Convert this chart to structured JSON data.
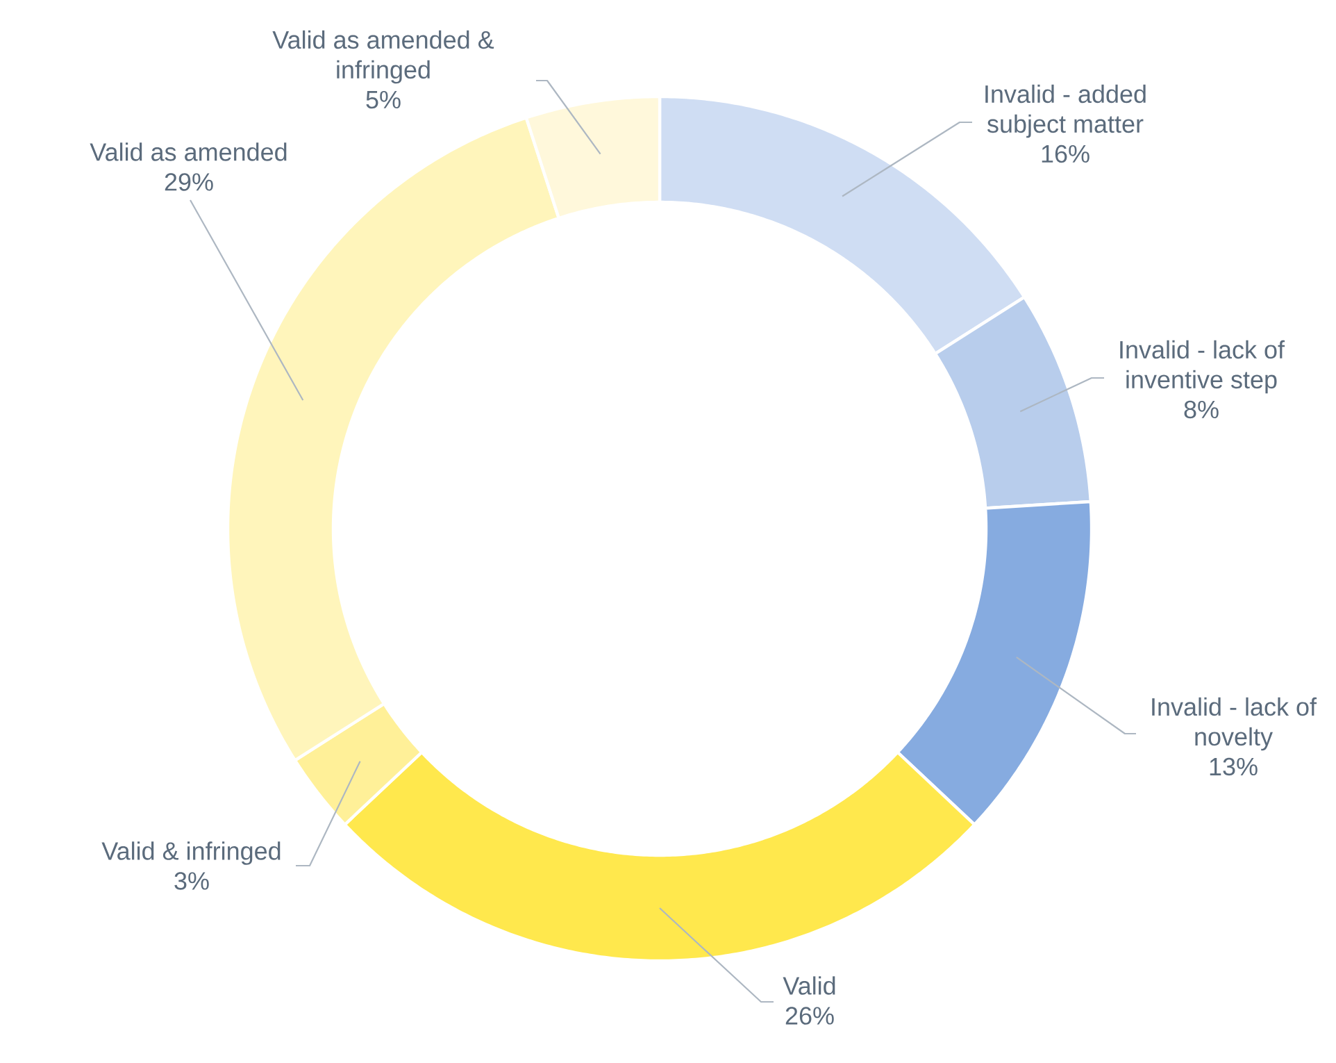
{
  "chart_data": {
    "type": "donut",
    "categories": [
      "Invalid - added subject matter",
      "Invalid - lack of inventive step",
      "Invalid - lack of novelty",
      "Valid",
      "Valid & infringed",
      "Valid as amended",
      "Valid as amended & infringed"
    ],
    "values": [
      16,
      8,
      13,
      26,
      3,
      29,
      5
    ],
    "value_labels": [
      "16%",
      "8%",
      "13%",
      "26%",
      "3%",
      "29%",
      "5%"
    ],
    "colors": [
      "#cfddf3",
      "#b8cdec",
      "#86abe0",
      "#ffe84d",
      "#fff098",
      "#fff5bb",
      "#fff8db"
    ]
  }
}
